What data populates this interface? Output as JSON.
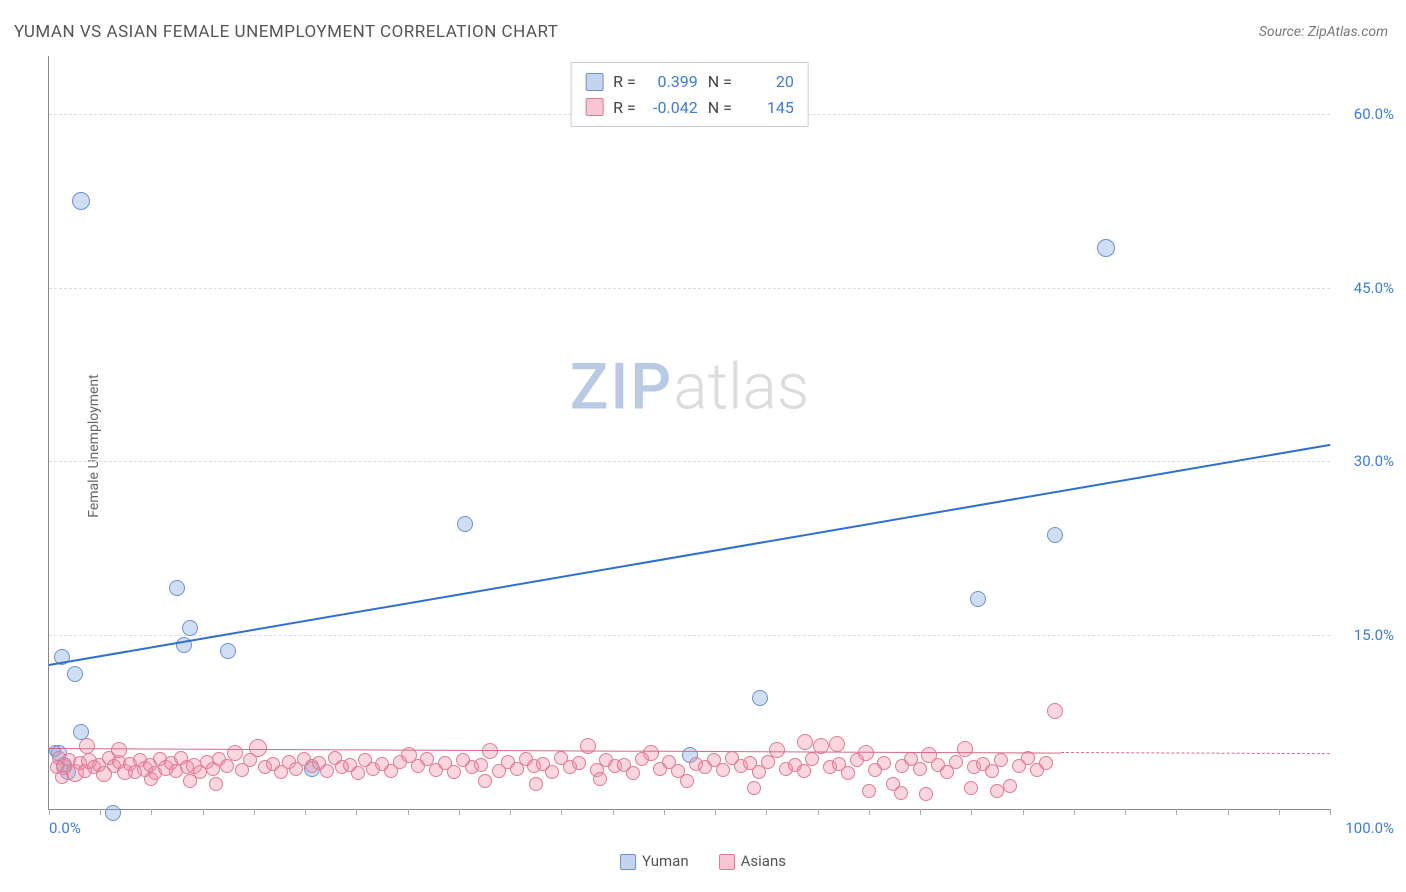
{
  "title": "YUMAN VS ASIAN FEMALE UNEMPLOYMENT CORRELATION CHART",
  "source": "Source: ZipAtlas.com",
  "ylabel": "Female Unemployment",
  "watermark": {
    "a": "ZIP",
    "b": "atlas"
  },
  "chart": {
    "type": "scatter",
    "background_color": "#ffffff",
    "grid_color": "#dddddd",
    "axis_color": "#888888",
    "tick_color": "#3b7dd8",
    "tick_fontsize": 15,
    "title_fontsize": 17,
    "label_fontsize": 14,
    "xlim": [
      0,
      100
    ],
    "ylim": [
      0,
      65
    ],
    "x_ticks_labeled": {
      "min": "0.0%",
      "max": "100.0%"
    },
    "y_ticks": [
      {
        "v": 15,
        "label": "15.0%"
      },
      {
        "v": 30,
        "label": "30.0%"
      },
      {
        "v": 45,
        "label": "45.0%"
      },
      {
        "v": 60,
        "label": "60.0%"
      }
    ],
    "x_minor_step": 4
  },
  "series": [
    {
      "name": "Yuman",
      "marker_color_fill": "rgba(120,160,220,0.35)",
      "marker_color_stroke": "#6a93cf",
      "marker_radius": 8,
      "swatch_fill": "#c4d4ef",
      "swatch_border": "#6a93cf",
      "trend": {
        "x1": 0,
        "y1": 12.5,
        "x2": 100,
        "y2": 31.5,
        "color": "#2f6fd0",
        "width": 2,
        "dash": false
      },
      "R": "0.399",
      "N": "20",
      "points": [
        {
          "x": 2.5,
          "y": 54,
          "r": 9
        },
        {
          "x": 82.5,
          "y": 50,
          "r": 9
        },
        {
          "x": 1.0,
          "y": 14.5,
          "r": 8
        },
        {
          "x": 2.0,
          "y": 13.0,
          "r": 8
        },
        {
          "x": 10.0,
          "y": 20.5,
          "r": 8
        },
        {
          "x": 11.0,
          "y": 17.0,
          "r": 8
        },
        {
          "x": 10.5,
          "y": 15.5,
          "r": 8
        },
        {
          "x": 14.0,
          "y": 15.0,
          "r": 8
        },
        {
          "x": 32.5,
          "y": 26.0,
          "r": 8
        },
        {
          "x": 72.5,
          "y": 19.5,
          "r": 8
        },
        {
          "x": 78.5,
          "y": 25.0,
          "r": 8
        },
        {
          "x": 55.5,
          "y": 11.0,
          "r": 8
        },
        {
          "x": 50.0,
          "y": 6.0,
          "r": 8
        },
        {
          "x": 20.5,
          "y": 4.8,
          "r": 8
        },
        {
          "x": 2.5,
          "y": 8.0,
          "r": 8
        },
        {
          "x": 0.8,
          "y": 6.2,
          "r": 8
        },
        {
          "x": 1.2,
          "y": 5.2,
          "r": 8
        },
        {
          "x": 1.5,
          "y": 4.6,
          "r": 8
        },
        {
          "x": 5.0,
          "y": 1.0,
          "r": 8
        },
        {
          "x": 0.5,
          "y": 6.0,
          "r": 6
        }
      ]
    },
    {
      "name": "Asians",
      "marker_color_fill": "rgba(240,140,165,0.35)",
      "marker_color_stroke": "#e07b95",
      "marker_radius": 7,
      "swatch_fill": "#f6c7d3",
      "swatch_border": "#e07b95",
      "trend": {
        "x1": 0,
        "y1": 5.3,
        "x2": 79,
        "y2": 4.9,
        "color": "#d46a85",
        "width": 1.5,
        "dash": false
      },
      "trend_ext": {
        "x1": 79,
        "y1": 4.9,
        "x2": 100,
        "y2": 4.8,
        "color": "#d46a85",
        "width": 1.5,
        "dash": true
      },
      "R": "-0.042",
      "N": "145",
      "points": [
        {
          "x": 0.8,
          "y": 5.6,
          "r": 7
        },
        {
          "x": 1.2,
          "y": 5.0,
          "r": 8
        },
        {
          "x": 1.6,
          "y": 5.4,
          "r": 7
        },
        {
          "x": 2.0,
          "y": 4.7,
          "r": 9
        },
        {
          "x": 2.4,
          "y": 5.2,
          "r": 7
        },
        {
          "x": 2.8,
          "y": 4.5,
          "r": 7
        },
        {
          "x": 3.1,
          "y": 5.5,
          "r": 8
        },
        {
          "x": 3.5,
          "y": 4.8,
          "r": 7
        },
        {
          "x": 3.9,
          "y": 5.0,
          "r": 7
        },
        {
          "x": 4.3,
          "y": 4.4,
          "r": 8
        },
        {
          "x": 4.7,
          "y": 5.6,
          "r": 7
        },
        {
          "x": 5.1,
          "y": 4.9,
          "r": 7
        },
        {
          "x": 5.5,
          "y": 5.3,
          "r": 7
        },
        {
          "x": 5.9,
          "y": 4.6,
          "r": 8
        },
        {
          "x": 6.3,
          "y": 5.1,
          "r": 7
        },
        {
          "x": 6.7,
          "y": 4.4,
          "r": 7
        },
        {
          "x": 7.1,
          "y": 5.4,
          "r": 7
        },
        {
          "x": 7.5,
          "y": 4.8,
          "r": 8
        },
        {
          "x": 7.9,
          "y": 5.0,
          "r": 7
        },
        {
          "x": 8.3,
          "y": 4.3,
          "r": 7
        },
        {
          "x": 8.7,
          "y": 5.5,
          "r": 7
        },
        {
          "x": 9.1,
          "y": 4.9,
          "r": 8
        },
        {
          "x": 9.5,
          "y": 5.2,
          "r": 7
        },
        {
          "x": 9.9,
          "y": 4.5,
          "r": 7
        },
        {
          "x": 10.3,
          "y": 5.6,
          "r": 7
        },
        {
          "x": 10.8,
          "y": 4.8,
          "r": 7
        },
        {
          "x": 11.3,
          "y": 5.1,
          "r": 8
        },
        {
          "x": 11.8,
          "y": 4.4,
          "r": 7
        },
        {
          "x": 12.3,
          "y": 5.3,
          "r": 7
        },
        {
          "x": 12.8,
          "y": 4.7,
          "r": 7
        },
        {
          "x": 13.3,
          "y": 5.5,
          "r": 7
        },
        {
          "x": 13.9,
          "y": 4.9,
          "r": 7
        },
        {
          "x": 14.5,
          "y": 6.2,
          "r": 8
        },
        {
          "x": 15.1,
          "y": 4.6,
          "r": 7
        },
        {
          "x": 15.7,
          "y": 5.4,
          "r": 7
        },
        {
          "x": 16.3,
          "y": 6.8,
          "r": 9
        },
        {
          "x": 16.9,
          "y": 4.8,
          "r": 7
        },
        {
          "x": 17.5,
          "y": 5.1,
          "r": 7
        },
        {
          "x": 18.1,
          "y": 4.4,
          "r": 7
        },
        {
          "x": 18.7,
          "y": 5.3,
          "r": 7
        },
        {
          "x": 19.3,
          "y": 4.7,
          "r": 7
        },
        {
          "x": 19.9,
          "y": 5.5,
          "r": 7
        },
        {
          "x": 20.5,
          "y": 4.9,
          "r": 7
        },
        {
          "x": 21.1,
          "y": 5.2,
          "r": 7
        },
        {
          "x": 21.7,
          "y": 4.5,
          "r": 7
        },
        {
          "x": 22.3,
          "y": 5.6,
          "r": 7
        },
        {
          "x": 22.9,
          "y": 4.8,
          "r": 7
        },
        {
          "x": 23.5,
          "y": 5.0,
          "r": 7
        },
        {
          "x": 24.1,
          "y": 4.3,
          "r": 7
        },
        {
          "x": 24.7,
          "y": 5.4,
          "r": 7
        },
        {
          "x": 25.3,
          "y": 4.7,
          "r": 7
        },
        {
          "x": 26.0,
          "y": 5.1,
          "r": 7
        },
        {
          "x": 26.7,
          "y": 4.5,
          "r": 7
        },
        {
          "x": 27.4,
          "y": 5.3,
          "r": 7
        },
        {
          "x": 28.1,
          "y": 6.0,
          "r": 8
        },
        {
          "x": 28.8,
          "y": 4.9,
          "r": 7
        },
        {
          "x": 29.5,
          "y": 5.5,
          "r": 7
        },
        {
          "x": 30.2,
          "y": 4.6,
          "r": 7
        },
        {
          "x": 30.9,
          "y": 5.2,
          "r": 7
        },
        {
          "x": 31.6,
          "y": 4.4,
          "r": 7
        },
        {
          "x": 32.3,
          "y": 5.4,
          "r": 7
        },
        {
          "x": 33.0,
          "y": 4.8,
          "r": 7
        },
        {
          "x": 33.7,
          "y": 5.0,
          "r": 7
        },
        {
          "x": 34.4,
          "y": 6.4,
          "r": 8
        },
        {
          "x": 35.1,
          "y": 4.5,
          "r": 7
        },
        {
          "x": 35.8,
          "y": 5.3,
          "r": 7
        },
        {
          "x": 36.5,
          "y": 4.7,
          "r": 7
        },
        {
          "x": 37.2,
          "y": 5.5,
          "r": 7
        },
        {
          "x": 37.9,
          "y": 4.9,
          "r": 7
        },
        {
          "x": 38.6,
          "y": 5.1,
          "r": 7
        },
        {
          "x": 39.3,
          "y": 4.4,
          "r": 7
        },
        {
          "x": 40.0,
          "y": 5.6,
          "r": 7
        },
        {
          "x": 40.7,
          "y": 4.8,
          "r": 7
        },
        {
          "x": 41.4,
          "y": 5.2,
          "r": 7
        },
        {
          "x": 42.1,
          "y": 6.8,
          "r": 8
        },
        {
          "x": 42.8,
          "y": 4.6,
          "r": 7
        },
        {
          "x": 43.5,
          "y": 5.4,
          "r": 7
        },
        {
          "x": 44.2,
          "y": 4.9,
          "r": 7
        },
        {
          "x": 44.9,
          "y": 5.0,
          "r": 7
        },
        {
          "x": 45.6,
          "y": 4.3,
          "r": 7
        },
        {
          "x": 46.3,
          "y": 5.5,
          "r": 7
        },
        {
          "x": 47.0,
          "y": 6.2,
          "r": 8
        },
        {
          "x": 47.7,
          "y": 4.7,
          "r": 7
        },
        {
          "x": 48.4,
          "y": 5.3,
          "r": 7
        },
        {
          "x": 49.1,
          "y": 4.5,
          "r": 7
        },
        {
          "x": 49.8,
          "y": 3.6,
          "r": 7
        },
        {
          "x": 50.5,
          "y": 5.1,
          "r": 7
        },
        {
          "x": 51.2,
          "y": 4.8,
          "r": 7
        },
        {
          "x": 51.9,
          "y": 5.4,
          "r": 7
        },
        {
          "x": 52.6,
          "y": 4.6,
          "r": 7
        },
        {
          "x": 53.3,
          "y": 5.6,
          "r": 7
        },
        {
          "x": 54.0,
          "y": 4.9,
          "r": 7
        },
        {
          "x": 54.7,
          "y": 5.2,
          "r": 7
        },
        {
          "x": 55.4,
          "y": 4.4,
          "r": 7
        },
        {
          "x": 56.1,
          "y": 5.3,
          "r": 7
        },
        {
          "x": 56.8,
          "y": 6.5,
          "r": 8
        },
        {
          "x": 57.5,
          "y": 4.7,
          "r": 7
        },
        {
          "x": 58.2,
          "y": 5.0,
          "r": 7
        },
        {
          "x": 58.9,
          "y": 4.5,
          "r": 7
        },
        {
          "x": 59.6,
          "y": 5.5,
          "r": 7
        },
        {
          "x": 60.3,
          "y": 6.8,
          "r": 8
        },
        {
          "x": 61.0,
          "y": 4.8,
          "r": 7
        },
        {
          "x": 61.7,
          "y": 5.1,
          "r": 7
        },
        {
          "x": 62.4,
          "y": 4.3,
          "r": 7
        },
        {
          "x": 63.1,
          "y": 5.4,
          "r": 7
        },
        {
          "x": 63.8,
          "y": 6.2,
          "r": 8
        },
        {
          "x": 64.5,
          "y": 4.6,
          "r": 7
        },
        {
          "x": 65.2,
          "y": 5.2,
          "r": 7
        },
        {
          "x": 65.9,
          "y": 3.4,
          "r": 7
        },
        {
          "x": 66.6,
          "y": 4.9,
          "r": 7
        },
        {
          "x": 67.3,
          "y": 5.5,
          "r": 7
        },
        {
          "x": 68.0,
          "y": 4.7,
          "r": 7
        },
        {
          "x": 68.7,
          "y": 6.0,
          "r": 8
        },
        {
          "x": 69.4,
          "y": 5.0,
          "r": 7
        },
        {
          "x": 70.1,
          "y": 4.4,
          "r": 7
        },
        {
          "x": 70.8,
          "y": 5.3,
          "r": 7
        },
        {
          "x": 71.5,
          "y": 6.6,
          "r": 8
        },
        {
          "x": 72.2,
          "y": 4.8,
          "r": 7
        },
        {
          "x": 72.9,
          "y": 5.1,
          "r": 7
        },
        {
          "x": 73.6,
          "y": 4.5,
          "r": 7
        },
        {
          "x": 74.3,
          "y": 5.4,
          "r": 7
        },
        {
          "x": 75.0,
          "y": 3.2,
          "r": 7
        },
        {
          "x": 75.7,
          "y": 4.9,
          "r": 7
        },
        {
          "x": 76.4,
          "y": 5.6,
          "r": 7
        },
        {
          "x": 77.1,
          "y": 4.6,
          "r": 7
        },
        {
          "x": 77.8,
          "y": 5.2,
          "r": 7
        },
        {
          "x": 78.5,
          "y": 9.8,
          "r": 8
        },
        {
          "x": 64.0,
          "y": 2.8,
          "r": 7
        },
        {
          "x": 66.5,
          "y": 2.6,
          "r": 7
        },
        {
          "x": 68.5,
          "y": 2.5,
          "r": 7
        },
        {
          "x": 59.0,
          "y": 7.2,
          "r": 8
        },
        {
          "x": 61.5,
          "y": 7.0,
          "r": 8
        },
        {
          "x": 55.0,
          "y": 3.0,
          "r": 7
        },
        {
          "x": 72.0,
          "y": 3.0,
          "r": 7
        },
        {
          "x": 74.0,
          "y": 2.8,
          "r": 7
        },
        {
          "x": 11.0,
          "y": 3.6,
          "r": 7
        },
        {
          "x": 13.0,
          "y": 3.4,
          "r": 7
        },
        {
          "x": 8.0,
          "y": 3.8,
          "r": 7
        },
        {
          "x": 5.5,
          "y": 6.5,
          "r": 8
        },
        {
          "x": 3.0,
          "y": 6.8,
          "r": 8
        },
        {
          "x": 1.0,
          "y": 4.0,
          "r": 7
        },
        {
          "x": 0.6,
          "y": 4.8,
          "r": 7
        },
        {
          "x": 34.0,
          "y": 3.6,
          "r": 7
        },
        {
          "x": 38.0,
          "y": 3.4,
          "r": 7
        },
        {
          "x": 43.0,
          "y": 3.8,
          "r": 7
        }
      ]
    }
  ],
  "legend": {
    "items": [
      {
        "label": "Yuman",
        "series": 0
      },
      {
        "label": "Asians",
        "series": 1
      }
    ]
  }
}
